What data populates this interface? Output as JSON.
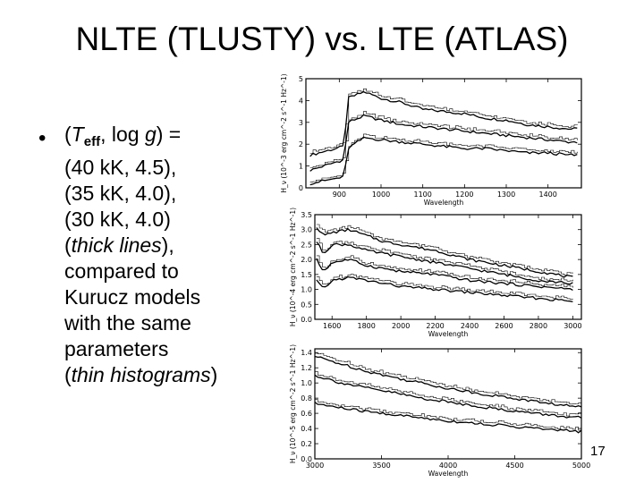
{
  "slide": {
    "title": "NLTE (TLUSTY) vs. LTE (ATLAS)",
    "bullet": {
      "prefix": "(",
      "teff_T": "T",
      "teff_sub": "eff",
      "mid": ", log ",
      "g": "g",
      "suffix": ") =",
      "line2": "(40 kK, 4.5),",
      "line3": "(35 kK, 4.0),",
      "line4": "(30 kK, 4.0)",
      "thick": "thick lines",
      "line5_rest": "),",
      "line6": "compared to",
      "line7": "Kurucz models",
      "line8": "with the same",
      "line9": "parameters",
      "thin": "thin histograms",
      "line10_rest": ")"
    },
    "page_number": "17"
  },
  "chart_data": [
    {
      "type": "line",
      "xlabel": "Wavelength",
      "ylabel": "H_ν (10^-3 erg cm^-2 s^-1 Hz^-1)",
      "xlim": [
        820,
        1480
      ],
      "ylim": [
        0,
        5
      ],
      "xticks": [
        900,
        1000,
        1100,
        1200,
        1300,
        1400
      ],
      "xtick_labels": [
        "900",
        "1000",
        "1100",
        "1200",
        "1300",
        "1400"
      ],
      "yticks": [
        0,
        1,
        2,
        3,
        4,
        5
      ],
      "ytick_labels": [
        "0",
        "1",
        "2",
        "3",
        "4",
        "5"
      ],
      "series": [
        {
          "style": "thick",
          "x": [
            830,
            912,
            920,
            960,
            1000,
            1050,
            1100,
            1150,
            1200,
            1250,
            1300,
            1350,
            1400,
            1450,
            1470
          ],
          "y": [
            1.5,
            1.9,
            4.1,
            4.4,
            4.1,
            3.9,
            3.6,
            3.5,
            3.4,
            3.2,
            3.1,
            2.9,
            2.8,
            2.7,
            2.7
          ]
        },
        {
          "style": "thick",
          "x": [
            830,
            912,
            920,
            960,
            1000,
            1050,
            1100,
            1150,
            1200,
            1250,
            1300,
            1350,
            1400,
            1450,
            1470
          ],
          "y": [
            0.8,
            1.3,
            3.0,
            3.3,
            3.1,
            2.9,
            2.8,
            2.7,
            2.6,
            2.5,
            2.4,
            2.3,
            2.2,
            2.1,
            2.1
          ]
        },
        {
          "style": "thick",
          "x": [
            830,
            912,
            920,
            960,
            1000,
            1050,
            1100,
            1150,
            1200,
            1250,
            1300,
            1350,
            1400,
            1450,
            1470
          ],
          "y": [
            0.2,
            0.5,
            1.8,
            2.3,
            2.2,
            2.1,
            2.0,
            1.9,
            1.8,
            1.8,
            1.7,
            1.6,
            1.6,
            1.5,
            1.5
          ]
        }
      ]
    },
    {
      "type": "line",
      "xlabel": "Wavelength",
      "ylabel": "H_ν (10^-4 erg cm^-2 s^-1 Hz^-1)",
      "xlim": [
        1500,
        3050
      ],
      "ylim": [
        0,
        3.5
      ],
      "xticks": [
        1600,
        1800,
        2000,
        2200,
        2400,
        2600,
        2800,
        3000
      ],
      "xtick_labels": [
        "1600",
        "1800",
        "2000",
        "2200",
        "2400",
        "2600",
        "2800",
        "3000"
      ],
      "yticks": [
        0,
        0.5,
        1.0,
        1.5,
        2.0,
        2.5,
        3.0,
        3.5
      ],
      "ytick_labels": [
        "0.0",
        "0.5",
        "1.0",
        "1.5",
        "2.0",
        "2.5",
        "3.0",
        "3.5"
      ],
      "series": [
        {
          "style": "thick",
          "x": [
            1510,
            1550,
            1600,
            1700,
            1800,
            1900,
            2000,
            2200,
            2400,
            2600,
            2800,
            3000
          ],
          "y": [
            3.1,
            2.8,
            2.9,
            3.0,
            2.8,
            2.6,
            2.5,
            2.3,
            2.0,
            1.8,
            1.6,
            1.4
          ]
        },
        {
          "style": "thick",
          "x": [
            1510,
            1550,
            1600,
            1700,
            1800,
            1900,
            2000,
            2200,
            2400,
            2600,
            2800,
            3000
          ],
          "y": [
            2.6,
            2.2,
            2.5,
            2.5,
            2.3,
            2.2,
            2.1,
            1.9,
            1.7,
            1.5,
            1.3,
            1.2
          ]
        },
        {
          "style": "thick",
          "x": [
            1510,
            1550,
            1600,
            1700,
            1800,
            1900,
            2000,
            2200,
            2400,
            2600,
            2800,
            3000
          ],
          "y": [
            2.0,
            1.6,
            1.9,
            2.0,
            1.8,
            1.7,
            1.6,
            1.5,
            1.3,
            1.2,
            1.1,
            1.0
          ]
        },
        {
          "style": "thick",
          "x": [
            1510,
            1550,
            1600,
            1700,
            1800,
            1900,
            2000,
            2200,
            2400,
            2600,
            2800,
            3000
          ],
          "y": [
            1.3,
            1.0,
            1.3,
            1.4,
            1.3,
            1.2,
            1.1,
            1.0,
            0.9,
            0.8,
            0.7,
            0.6
          ]
        }
      ]
    },
    {
      "type": "line",
      "xlabel": "Wavelength",
      "ylabel": "H_ν (10^-5 erg cm^-2 s^-1 Hz^-1)",
      "xlim": [
        3000,
        5000
      ],
      "ylim": [
        0,
        1.45
      ],
      "xticks": [
        3000,
        3500,
        4000,
        4500,
        5000
      ],
      "xtick_labels": [
        "3000",
        "3500",
        "4000",
        "4500",
        "5000"
      ],
      "yticks": [
        0,
        0.2,
        0.4,
        0.6,
        0.8,
        1.0,
        1.2,
        1.4
      ],
      "ytick_labels": [
        "0.0",
        "0.2",
        "0.4",
        "0.6",
        "0.8",
        "1.0",
        "1.2",
        "1.4"
      ],
      "series": [
        {
          "style": "thick",
          "x": [
            3000,
            3200,
            3400,
            3600,
            3800,
            4000,
            4200,
            4400,
            4600,
            4800,
            5000
          ],
          "y": [
            1.35,
            1.25,
            1.15,
            1.07,
            1.0,
            0.93,
            0.87,
            0.82,
            0.77,
            0.72,
            0.68
          ]
        },
        {
          "style": "thick",
          "x": [
            3000,
            3200,
            3400,
            3600,
            3800,
            4000,
            4200,
            4400,
            4600,
            4800,
            5000
          ],
          "y": [
            1.1,
            1.0,
            0.93,
            0.87,
            0.8,
            0.75,
            0.7,
            0.65,
            0.61,
            0.57,
            0.54
          ]
        },
        {
          "style": "thick",
          "x": [
            3000,
            3200,
            3400,
            3600,
            3800,
            4000,
            4200,
            4400,
            4600,
            4800,
            5000
          ],
          "y": [
            0.73,
            0.67,
            0.62,
            0.58,
            0.54,
            0.5,
            0.47,
            0.44,
            0.41,
            0.38,
            0.36
          ]
        }
      ]
    }
  ]
}
